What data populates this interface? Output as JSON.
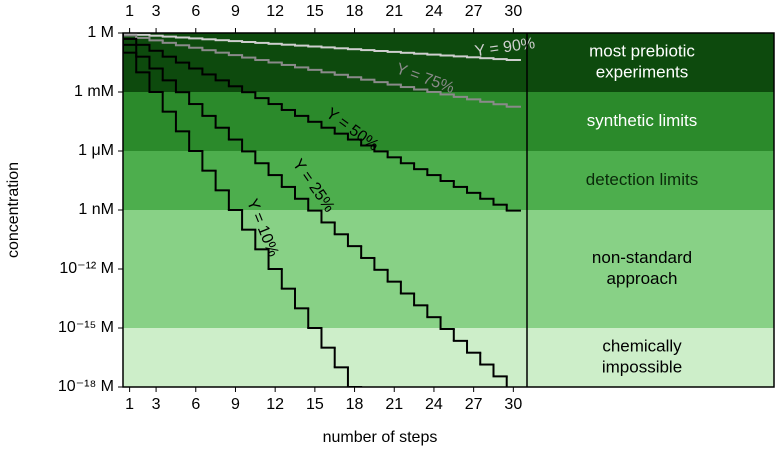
{
  "chart_data": {
    "type": "step",
    "x_label": "number of steps",
    "y_label": "concentration",
    "x": [
      1,
      2,
      3,
      4,
      5,
      6,
      7,
      8,
      9,
      10,
      11,
      12,
      13,
      14,
      15,
      16,
      17,
      18,
      19,
      20,
      21,
      22,
      23,
      24,
      25,
      26,
      27,
      28,
      29,
      30
    ],
    "xlim": [
      0.5,
      49.7
    ],
    "xticks": [
      1,
      3,
      6,
      9,
      12,
      15,
      18,
      21,
      24,
      27,
      30
    ],
    "ylim": [
      1e-18,
      1
    ],
    "log_y": true,
    "yticks": [
      {
        "value": 1,
        "label": "1 M"
      },
      {
        "value": 0.001,
        "label": "1 mM"
      },
      {
        "value": 1e-06,
        "label": "1 μM"
      },
      {
        "value": 1e-09,
        "label": "1 nM"
      },
      {
        "value": 1e-12,
        "label": "10⁻¹² M"
      },
      {
        "value": 1e-15,
        "label": "10⁻¹⁵ M"
      },
      {
        "value": 1e-18,
        "label": "10⁻¹⁸ M"
      }
    ],
    "bands": [
      {
        "from": 0.001,
        "to": 1,
        "color": "#0d4a0d",
        "text_color": "#ffffff",
        "lines": [
          "most prebiotic",
          "experiments"
        ]
      },
      {
        "from": 1e-06,
        "to": 0.001,
        "color": "#2b8a2b",
        "text_color": "#ffffff",
        "lines": [
          "synthetic limits"
        ]
      },
      {
        "from": 1e-09,
        "to": 1e-06,
        "color": "#4dae4d",
        "text_color": "#0a2a0a",
        "lines": [
          "detection limits"
        ]
      },
      {
        "from": 1e-15,
        "to": 1e-09,
        "color": "#88d186",
        "text_color": "#000000",
        "lines": [
          "non-standard",
          "approach"
        ]
      },
      {
        "from": 1e-18,
        "to": 1e-15,
        "color": "#cdeec9",
        "text_color": "#000000",
        "lines": [
          "chemically",
          "impossible"
        ]
      }
    ],
    "series": [
      {
        "name": "Y = 90%",
        "color": "#cfcfcf",
        "values": [
          0.9,
          0.81,
          0.729,
          0.6561,
          0.59049,
          0.531441,
          0.4782969,
          0.43046721,
          0.387420489,
          0.3486784401,
          0.31381059609,
          0.282429536481,
          0.254186582833,
          0.22876792455,
          0.205891132095,
          0.185302018885,
          0.166771816997,
          0.150094635297,
          0.135085171767,
          0.12157665459,
          0.109418989131,
          0.098477090218,
          0.088629381196,
          0.079766443077,
          0.071789798769,
          0.064610818892,
          0.058149737003,
          0.052334763303,
          0.047101286972,
          0.042391158275
        ]
      },
      {
        "name": "Y = 75%",
        "color": "#8a8a8a",
        "values": [
          0.75,
          0.5625,
          0.421875,
          0.31640625,
          0.2373046875,
          0.177978515625,
          0.133483886719,
          0.100112915039,
          0.075084686279,
          0.056313514709,
          0.042235136032,
          0.031676352024,
          0.023757264018,
          0.017817948013,
          0.01336346101,
          0.010022595758,
          0.007516946818,
          0.005637710114,
          0.004228282585,
          0.003171211939,
          0.002378408954,
          0.001783806716,
          0.001337855037,
          0.001003391278,
          0.000752543458,
          0.000564407594,
          0.000423305695,
          0.000317479271,
          0.000238109454,
          0.00017858209
        ]
      },
      {
        "name": "Y = 50%",
        "color": "#000000",
        "values": [
          0.5,
          0.25,
          0.125,
          0.0625,
          0.03125,
          0.015625,
          0.0078125,
          0.00390625,
          0.001953125,
          0.0009765625,
          0.00048828125,
          0.000244140625,
          0.0001220703125,
          6.103515625e-05,
          3.0517578125e-05,
          1.52587890625e-05,
          7.62939453125e-06,
          3.814697265625e-06,
          1.9073486328125e-06,
          9.5367431640625e-07,
          4.76837158203125e-07,
          2.384185791015625e-07,
          1.1920928955078125e-07,
          5.960464477539063e-08,
          2.9802322387695312e-08,
          1.4901161193847656e-08,
          7.450580596923828e-09,
          3.725290298461914e-09,
          1.862645149230957e-09,
          9.313225746154785e-10
        ]
      },
      {
        "name": "Y = 25%",
        "color": "#000000",
        "values": [
          0.25,
          0.0625,
          0.015625,
          0.00390625,
          0.0009765625,
          0.000244140625,
          6.103515625e-05,
          1.52587890625e-05,
          3.814697265625e-06,
          9.5367431640625e-07,
          2.384185791015625e-07,
          5.960464477539063e-08,
          1.4901161193847656e-08,
          3.725290298461914e-09,
          9.313225746154785e-10,
          2.3283064365386963e-10,
          5.820766091346741e-11,
          1.4551915228366852e-11,
          3.637978807091713e-12,
          9.094947017729282e-13,
          2.2737367544323206e-13,
          5.684341886080802e-14,
          1.4210854715202004e-14,
          3.552713678800501e-15,
          8.881784197001252e-16,
          2.220446049250313e-16,
          5.551115123125783e-17,
          1.3877787807814457e-17,
          3.469446951953614e-18,
          8.673617379884035e-19
        ]
      },
      {
        "name": "Y = 10%",
        "color": "#000000",
        "values": [
          0.1,
          0.01,
          0.001,
          0.0001,
          1e-05,
          1e-06,
          1e-07,
          1e-08,
          1e-09,
          1e-10,
          1e-11,
          1e-12,
          1e-13,
          1e-14,
          1e-15,
          1e-16,
          1e-17,
          1e-18,
          null,
          null,
          null,
          null,
          null,
          null,
          null,
          null,
          null,
          null,
          null,
          null
        ]
      }
    ]
  }
}
